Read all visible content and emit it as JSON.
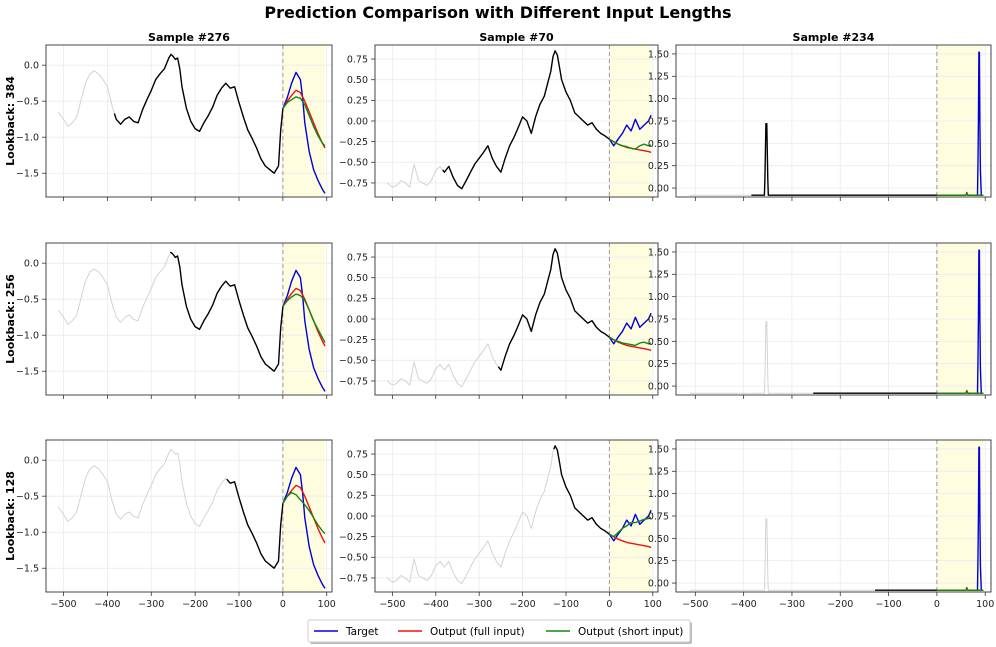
{
  "chart_data": {
    "type": "line",
    "title": "Prediction Comparison with Different Input Lengths",
    "columns": [
      "Sample #276",
      "Sample #70",
      "Sample #234"
    ],
    "rows": [
      "Lookback: 384",
      "Lookback: 256",
      "Lookback: 128"
    ],
    "lookbacks": [
      384,
      256,
      128
    ],
    "x_range": [
      -512,
      96
    ],
    "xlim": [
      -540,
      112
    ],
    "x_ticks": [
      -500,
      -400,
      -300,
      -200,
      -100,
      0,
      100
    ],
    "x_tick_labels": [
      "−500",
      "−400",
      "−300",
      "−200",
      "−100",
      "0",
      "100"
    ],
    "forecast_window": [
      0,
      96
    ],
    "legend": [
      "Target",
      "Output (full input)",
      "Output (short input)"
    ],
    "colors": {
      "target": "#0000dd",
      "full": "#ee1111",
      "short": "#118811",
      "input": "#000000",
      "context": "#d3d3d3",
      "forecast_shade": "#fffde0",
      "divider": "#999999",
      "grid": "#ebebeb"
    },
    "samples": [
      {
        "name": "Sample #276",
        "ylim": [
          -1.83,
          0.28
        ],
        "yticks": [
          -1.5,
          -1.0,
          -0.5,
          0.0
        ],
        "ytick_labels": [
          "−1.5",
          "−1.0",
          "−0.5",
          "0.0"
        ],
        "history": {
          "x": [
            -512,
            -500,
            -490,
            -480,
            -470,
            -460,
            -450,
            -440,
            -430,
            -420,
            -410,
            -400,
            -390,
            -380,
            -370,
            -360,
            -350,
            -340,
            -330,
            -320,
            -310,
            -300,
            -290,
            -280,
            -270,
            -260,
            -255,
            -250,
            -245,
            -240,
            -235,
            -230,
            -220,
            -210,
            -200,
            -190,
            -180,
            -170,
            -160,
            -150,
            -140,
            -130,
            -120,
            -110,
            -100,
            -90,
            -80,
            -70,
            -60,
            -50,
            -40,
            -30,
            -20,
            -10,
            -5,
            0
          ],
          "y": [
            -0.65,
            -0.75,
            -0.85,
            -0.8,
            -0.72,
            -0.48,
            -0.25,
            -0.12,
            -0.08,
            -0.12,
            -0.2,
            -0.3,
            -0.55,
            -0.75,
            -0.82,
            -0.75,
            -0.72,
            -0.78,
            -0.8,
            -0.62,
            -0.48,
            -0.35,
            -0.2,
            -0.12,
            -0.05,
            0.1,
            0.15,
            0.12,
            0.08,
            0.1,
            -0.05,
            -0.3,
            -0.6,
            -0.78,
            -0.88,
            -0.92,
            -0.8,
            -0.7,
            -0.58,
            -0.42,
            -0.32,
            -0.25,
            -0.32,
            -0.3,
            -0.52,
            -0.72,
            -0.9,
            -1.02,
            -1.15,
            -1.3,
            -1.4,
            -1.45,
            -1.5,
            -1.4,
            -0.9,
            -0.6
          ]
        },
        "target": {
          "x": [
            0,
            10,
            20,
            30,
            40,
            45,
            50,
            60,
            70,
            80,
            90,
            96
          ],
          "y": [
            -0.6,
            -0.45,
            -0.25,
            -0.1,
            -0.2,
            -0.45,
            -0.8,
            -1.2,
            -1.45,
            -1.6,
            -1.72,
            -1.78
          ]
        },
        "output_full": {
          "x": [
            0,
            10,
            20,
            30,
            40,
            50,
            60,
            70,
            80,
            90,
            96
          ],
          "y": [
            -0.6,
            -0.5,
            -0.42,
            -0.35,
            -0.38,
            -0.5,
            -0.65,
            -0.8,
            -0.95,
            -1.08,
            -1.15
          ]
        },
        "output_short": {
          "by_lookback": [
            {
              "x": [
                0,
                10,
                20,
                30,
                40,
                50,
                60,
                70,
                80,
                90,
                96
              ],
              "y": [
                -0.6,
                -0.52,
                -0.48,
                -0.44,
                -0.46,
                -0.55,
                -0.7,
                -0.85,
                -0.98,
                -1.08,
                -1.12
              ]
            },
            {
              "x": [
                0,
                10,
                20,
                30,
                40,
                50,
                60,
                70,
                80,
                90,
                96
              ],
              "y": [
                -0.6,
                -0.52,
                -0.47,
                -0.43,
                -0.45,
                -0.52,
                -0.65,
                -0.8,
                -0.92,
                -1.03,
                -1.1
              ]
            },
            {
              "x": [
                0,
                10,
                20,
                30,
                40,
                50,
                60,
                70,
                80,
                90,
                96
              ],
              "y": [
                -0.6,
                -0.5,
                -0.45,
                -0.48,
                -0.55,
                -0.62,
                -0.7,
                -0.8,
                -0.9,
                -0.98,
                -1.02
              ]
            }
          ]
        }
      },
      {
        "name": "Sample #70",
        "ylim": [
          -0.92,
          0.92
        ],
        "yticks": [
          -0.75,
          -0.5,
          -0.25,
          0.0,
          0.25,
          0.5,
          0.75
        ],
        "ytick_labels": [
          "−0.75",
          "−0.50",
          "−0.25",
          "0.00",
          "0.25",
          "0.50",
          "0.75"
        ],
        "history": {
          "x": [
            -512,
            -500,
            -490,
            -480,
            -470,
            -460,
            -450,
            -440,
            -430,
            -420,
            -410,
            -400,
            -390,
            -380,
            -370,
            -360,
            -350,
            -340,
            -330,
            -320,
            -310,
            -300,
            -290,
            -280,
            -270,
            -260,
            -250,
            -240,
            -230,
            -220,
            -210,
            -200,
            -190,
            -180,
            -170,
            -160,
            -150,
            -140,
            -135,
            -130,
            -125,
            -120,
            -115,
            -110,
            -100,
            -90,
            -80,
            -70,
            -60,
            -50,
            -40,
            -30,
            -20,
            -10,
            0
          ],
          "y": [
            -0.75,
            -0.8,
            -0.78,
            -0.72,
            -0.75,
            -0.8,
            -0.52,
            -0.72,
            -0.75,
            -0.78,
            -0.72,
            -0.6,
            -0.55,
            -0.62,
            -0.55,
            -0.68,
            -0.78,
            -0.82,
            -0.72,
            -0.62,
            -0.52,
            -0.45,
            -0.38,
            -0.3,
            -0.45,
            -0.55,
            -0.62,
            -0.45,
            -0.3,
            -0.2,
            -0.08,
            0.05,
            0.0,
            -0.15,
            0.05,
            0.2,
            0.3,
            0.5,
            0.6,
            0.78,
            0.85,
            0.8,
            0.65,
            0.5,
            0.35,
            0.25,
            0.1,
            0.05,
            0.0,
            -0.05,
            -0.02,
            -0.1,
            -0.15,
            -0.18,
            -0.22
          ]
        },
        "target": {
          "x": [
            0,
            10,
            20,
            30,
            40,
            50,
            60,
            70,
            80,
            90,
            96
          ],
          "y": [
            -0.22,
            -0.3,
            -0.22,
            -0.15,
            -0.05,
            -0.12,
            0.02,
            -0.1,
            -0.05,
            0.0,
            0.07
          ]
        },
        "output_full": {
          "x": [
            0,
            10,
            20,
            30,
            40,
            50,
            60,
            70,
            80,
            90,
            96
          ],
          "y": [
            -0.22,
            -0.25,
            -0.28,
            -0.3,
            -0.32,
            -0.33,
            -0.34,
            -0.35,
            -0.36,
            -0.37,
            -0.38
          ]
        },
        "output_short": {
          "by_lookback": [
            {
              "x": [
                0,
                10,
                20,
                30,
                40,
                50,
                60,
                70,
                80,
                90,
                96
              ],
              "y": [
                -0.22,
                -0.25,
                -0.28,
                -0.3,
                -0.31,
                -0.33,
                -0.34,
                -0.3,
                -0.28,
                -0.3,
                -0.29
              ]
            },
            {
              "x": [
                0,
                10,
                20,
                30,
                40,
                50,
                60,
                70,
                80,
                90,
                96
              ],
              "y": [
                -0.22,
                -0.25,
                -0.27,
                -0.29,
                -0.3,
                -0.31,
                -0.32,
                -0.29,
                -0.28,
                -0.3,
                -0.29
              ]
            },
            {
              "x": [
                0,
                10,
                20,
                30,
                40,
                50,
                60,
                70,
                80,
                90,
                96
              ],
              "y": [
                -0.22,
                -0.25,
                -0.2,
                -0.15,
                -0.12,
                -0.08,
                -0.08,
                -0.06,
                -0.04,
                -0.03,
                -0.02
              ]
            }
          ]
        }
      },
      {
        "name": "Sample #234",
        "ylim": [
          -0.1,
          1.6
        ],
        "yticks": [
          0.0,
          0.25,
          0.5,
          0.75,
          1.0,
          1.25,
          1.5
        ],
        "ytick_labels": [
          "0.00",
          "0.25",
          "0.50",
          "0.75",
          "1.00",
          "1.25",
          "1.50"
        ],
        "history": {
          "x": [
            -512,
            -358,
            -357,
            -356,
            -355,
            -354,
            -353,
            -352,
            -351,
            -350,
            -349,
            -348,
            -347,
            0
          ],
          "y": [
            -0.08,
            -0.08,
            -0.08,
            0.1,
            0.4,
            0.72,
            0.72,
            0.72,
            0.4,
            0.1,
            -0.08,
            -0.08,
            -0.08,
            -0.08
          ]
        },
        "target": {
          "x": [
            0,
            60,
            62,
            64,
            66,
            80,
            84,
            85,
            86,
            87,
            88,
            89,
            90,
            92,
            96
          ],
          "y": [
            -0.08,
            -0.08,
            -0.06,
            -0.08,
            -0.08,
            -0.08,
            -0.08,
            0.3,
            0.72,
            1.52,
            1.52,
            0.72,
            0.2,
            -0.08,
            -0.08
          ]
        },
        "output_full": {
          "x": [
            0,
            60,
            62,
            64,
            66,
            80,
            96
          ],
          "y": [
            -0.08,
            -0.08,
            -0.05,
            -0.08,
            -0.08,
            -0.08,
            -0.08
          ]
        },
        "output_short": {
          "by_lookback": [
            {
              "x": [
                0,
                60,
                62,
                64,
                66,
                96
              ],
              "y": [
                -0.08,
                -0.08,
                -0.06,
                -0.08,
                -0.08,
                -0.08
              ]
            },
            {
              "x": [
                0,
                60,
                62,
                64,
                66,
                96
              ],
              "y": [
                -0.08,
                -0.08,
                -0.06,
                -0.08,
                -0.08,
                -0.08
              ]
            },
            {
              "x": [
                0,
                60,
                62,
                64,
                66,
                96
              ],
              "y": [
                -0.08,
                -0.08,
                -0.06,
                -0.08,
                -0.08,
                -0.08
              ]
            }
          ]
        }
      }
    ]
  }
}
